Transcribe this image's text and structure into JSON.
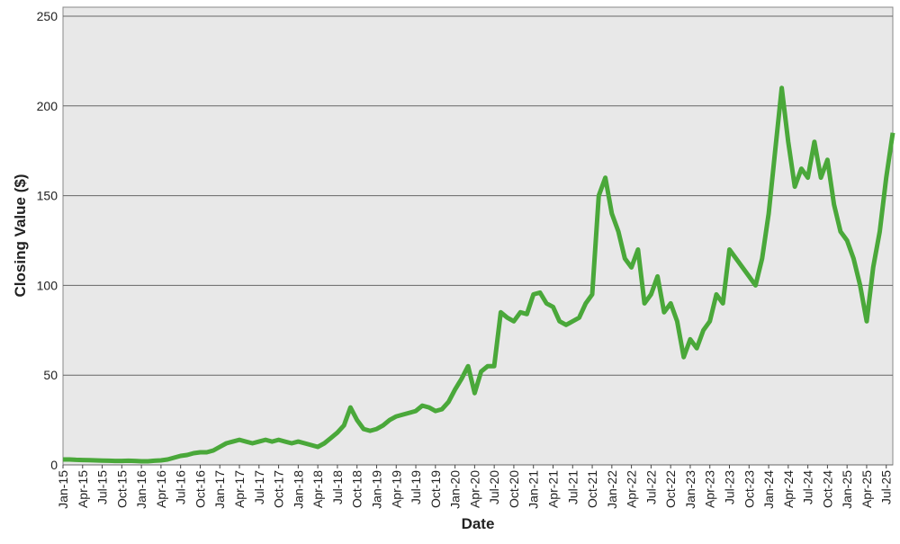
{
  "chart_data": {
    "type": "line",
    "x_label": "Date",
    "y_label": "Closing Value ($)",
    "categories": [
      "Jan-15",
      null,
      null,
      "Apr-15",
      null,
      null,
      "Jul-15",
      null,
      null,
      "Oct-15",
      null,
      null,
      "Jan-16",
      null,
      null,
      "Apr-16",
      null,
      null,
      "Jul-16",
      null,
      null,
      "Oct-16",
      null,
      null,
      "Jan-17",
      null,
      null,
      "Apr-17",
      null,
      null,
      "Jul-17",
      null,
      null,
      "Oct-17",
      null,
      null,
      "Jan-18",
      null,
      null,
      "Apr-18",
      null,
      null,
      "Jul-18",
      null,
      null,
      "Oct-18",
      null,
      null,
      "Jan-19",
      null,
      null,
      "Apr-19",
      null,
      null,
      "Jul-19",
      null,
      null,
      "Oct-19",
      null,
      null,
      "Jan-20",
      null,
      null,
      "Apr-20",
      null,
      null,
      "Jul-20",
      null,
      null,
      "Oct-20",
      null,
      null,
      "Jan-21",
      null,
      null,
      "Apr-21",
      null,
      null,
      "Jul-21",
      null,
      null,
      "Oct-21",
      null,
      null,
      "Jan-22",
      null,
      null,
      "Apr-22",
      null,
      null,
      "Jul-22",
      null,
      null,
      "Oct-22",
      null,
      null,
      "Jan-23",
      null,
      null,
      "Apr-23",
      null,
      null,
      "Jul-23",
      null,
      null,
      "Oct-23",
      null,
      null,
      "Jan-24",
      null,
      null,
      "Apr-24",
      null,
      null,
      "Jul-24",
      null,
      null,
      "Oct-24",
      null,
      null,
      "Jan-25",
      null,
      null,
      "Apr-25",
      null,
      null,
      "Jul-25",
      null
    ],
    "values": [
      3,
      3,
      2.8,
      2.7,
      2.6,
      2.5,
      2.4,
      2.3,
      2.2,
      2.2,
      2.3,
      2.2,
      2,
      2,
      2.3,
      2.5,
      3,
      4,
      5,
      5.5,
      6.5,
      7,
      7,
      8,
      10,
      12,
      13,
      14,
      13,
      12,
      13,
      14,
      13,
      14,
      13,
      12,
      13,
      12,
      11,
      10,
      12,
      15,
      18,
      22,
      32,
      25,
      20,
      19,
      20,
      22,
      25,
      27,
      28,
      29,
      30,
      33,
      32,
      30,
      31,
      35,
      42,
      48,
      55,
      40,
      52,
      55,
      55,
      85,
      82,
      80,
      85,
      84,
      95,
      96,
      90,
      88,
      80,
      78,
      80,
      82,
      90,
      95,
      150,
      160,
      140,
      130,
      115,
      110,
      120,
      90,
      95,
      105,
      85,
      90,
      80,
      60,
      70,
      65,
      75,
      80,
      95,
      90,
      120,
      115,
      110,
      105,
      100,
      115,
      140,
      175,
      210,
      180,
      155,
      165,
      160,
      180,
      160,
      170,
      145,
      130,
      125,
      115,
      100,
      80,
      110,
      130,
      160,
      185
    ],
    "color": "#4aa83a",
    "ylim": [
      0,
      255
    ],
    "yticks": [
      0,
      50,
      100,
      150,
      200,
      250
    ],
    "grid": true
  }
}
